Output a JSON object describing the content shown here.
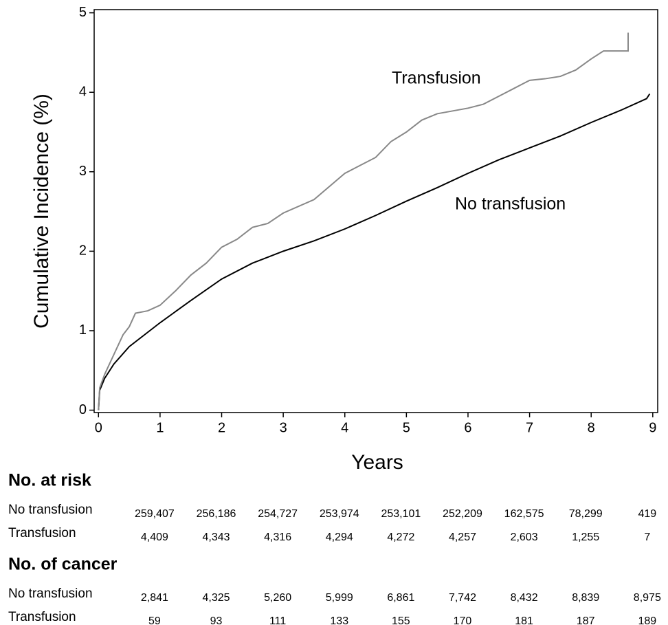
{
  "chart_data": {
    "type": "line",
    "xlabel": "Years",
    "ylabel": "Cumulative Incidence (%)",
    "xlim": [
      -0.07,
      9.08
    ],
    "ylim": [
      -0.03,
      5.04
    ],
    "xticks": [
      0,
      1,
      2,
      3,
      4,
      5,
      6,
      7,
      8,
      9
    ],
    "yticks": [
      0,
      1,
      2,
      3,
      4,
      5
    ],
    "annotations": [
      "Transfusion",
      "No transfusion"
    ],
    "series": [
      {
        "name": "No transfusion",
        "color": "#000000",
        "x": [
          0,
          0.02,
          0.1,
          0.25,
          0.5,
          0.75,
          1,
          1.5,
          2,
          2.5,
          3,
          3.5,
          4,
          4.5,
          5,
          5.5,
          6,
          6.5,
          7,
          7.5,
          8,
          8.5,
          8.9,
          8.95
        ],
        "values": [
          0,
          0.25,
          0.4,
          0.58,
          0.8,
          0.95,
          1.1,
          1.38,
          1.65,
          1.85,
          2.0,
          2.13,
          2.28,
          2.45,
          2.63,
          2.8,
          2.98,
          3.15,
          3.3,
          3.45,
          3.62,
          3.78,
          3.92,
          3.98
        ]
      },
      {
        "name": "Transfusion",
        "color": "#888888",
        "x": [
          0,
          0.02,
          0.1,
          0.25,
          0.4,
          0.5,
          0.6,
          0.8,
          1,
          1.25,
          1.5,
          1.75,
          2,
          2.25,
          2.5,
          2.75,
          3,
          3.5,
          4,
          4.25,
          4.5,
          4.75,
          5,
          5.25,
          5.5,
          6,
          6.25,
          6.5,
          6.75,
          7,
          7.25,
          7.5,
          7.75,
          8,
          8.2,
          8.6,
          8.6
        ],
        "values": [
          0,
          0.28,
          0.45,
          0.7,
          0.95,
          1.05,
          1.22,
          1.25,
          1.32,
          1.5,
          1.7,
          1.85,
          2.05,
          2.15,
          2.3,
          2.35,
          2.48,
          2.65,
          2.98,
          3.08,
          3.18,
          3.38,
          3.5,
          3.65,
          3.73,
          3.8,
          3.85,
          3.95,
          4.05,
          4.15,
          4.17,
          4.2,
          4.28,
          4.42,
          4.52,
          4.52,
          4.75
        ]
      }
    ]
  },
  "tables": [
    {
      "title": "No. at risk",
      "rows": [
        {
          "label": "No transfusion",
          "values": [
            "259,407",
            "256,186",
            "254,727",
            "253,974",
            "253,101",
            "252,209",
            "162,575",
            "78,299",
            "419"
          ]
        },
        {
          "label": "Transfusion",
          "values": [
            "4,409",
            "4,343",
            "4,316",
            "4,294",
            "4,272",
            "4,257",
            "2,603",
            "1,255",
            "7"
          ]
        }
      ]
    },
    {
      "title": "No. of cancer",
      "rows": [
        {
          "label": "No transfusion",
          "values": [
            "2,841",
            "4,325",
            "5,260",
            "5,999",
            "6,861",
            "7,742",
            "8,432",
            "8,839",
            "8,975"
          ]
        },
        {
          "label": "Transfusion",
          "values": [
            "59",
            "93",
            "111",
            "133",
            "155",
            "170",
            "181",
            "187",
            "189"
          ]
        }
      ]
    }
  ]
}
